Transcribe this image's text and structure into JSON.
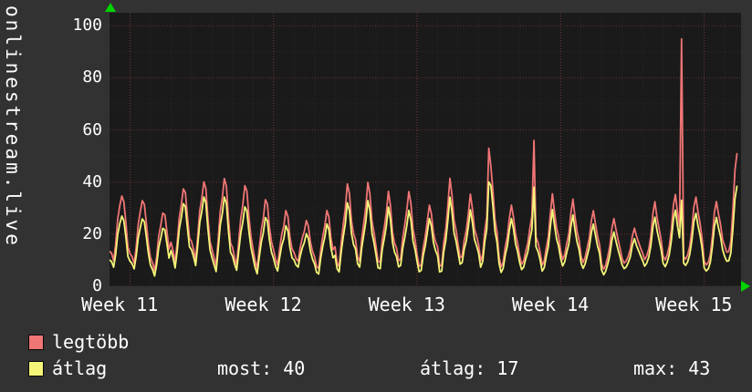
{
  "colors": {
    "background": "#323232",
    "plot_background": "#1a1a1a",
    "axis_arrow": "#00d400",
    "grid_minor": "rgba(240,100,100,0.13)",
    "grid_major": "rgba(240,100,100,0.45)",
    "text": "#ffffff"
  },
  "chart_data": {
    "type": "line",
    "vertical_label": "onlinestream.live",
    "ylim": [
      0,
      105
    ],
    "y_ticks": [
      0,
      20,
      40,
      60,
      80,
      100
    ],
    "x_total_days": 30.8,
    "week_gridline_days": [
      1,
      8,
      15,
      22,
      29
    ],
    "x_tick_labels": [
      {
        "label": "Week 11",
        "day": 0.5
      },
      {
        "label": "Week 12",
        "day": 7.5
      },
      {
        "label": "Week 13",
        "day": 14.5
      },
      {
        "label": "Week 14",
        "day": 21.5
      },
      {
        "label": "Week 15",
        "day": 28.5
      }
    ],
    "daily_profile": [
      0.22,
      0.12,
      0.1,
      0.3,
      0.55,
      0.8,
      1.0,
      0.85,
      0.6,
      0.38
    ],
    "series": [
      {
        "name": "legtöbb",
        "color": "#f07575",
        "trough": 7,
        "daily_peaks": [
          36,
          33,
          29,
          40,
          42,
          41,
          38,
          34,
          30,
          25,
          28,
          38,
          40,
          36,
          35,
          30,
          40,
          35,
          44,
          30,
          26,
          35,
          33,
          28,
          25,
          22,
          33,
          35,
          33,
          32,
          53
        ],
        "spikes": [
          {
            "day": 18.5,
            "value": 53
          },
          {
            "day": 20.7,
            "value": 56
          },
          {
            "day": 27.9,
            "value": 95
          }
        ],
        "end_partial_samples": 7
      },
      {
        "name": "átlag",
        "color": "#f5f578",
        "trough": 5,
        "daily_peaks": [
          28,
          26,
          23,
          34,
          36,
          34,
          30,
          27,
          24,
          20,
          23,
          31,
          33,
          30,
          28,
          25,
          33,
          29,
          37,
          25,
          21,
          29,
          27,
          23,
          20,
          18,
          27,
          29,
          27,
          26,
          40
        ],
        "spikes": [
          {
            "day": 18.5,
            "value": 40
          },
          {
            "day": 20.7,
            "value": 38
          },
          {
            "day": 27.9,
            "value": 33
          }
        ],
        "end_partial_samples": 7
      }
    ]
  },
  "legend": {
    "items": [
      {
        "label": "legtöbb",
        "color": "#f07575"
      },
      {
        "label": "átlag",
        "color": "#f5f578"
      }
    ]
  },
  "stats": {
    "most": "most: 40",
    "atlag": "átlag: 17",
    "max": "max: 43"
  }
}
